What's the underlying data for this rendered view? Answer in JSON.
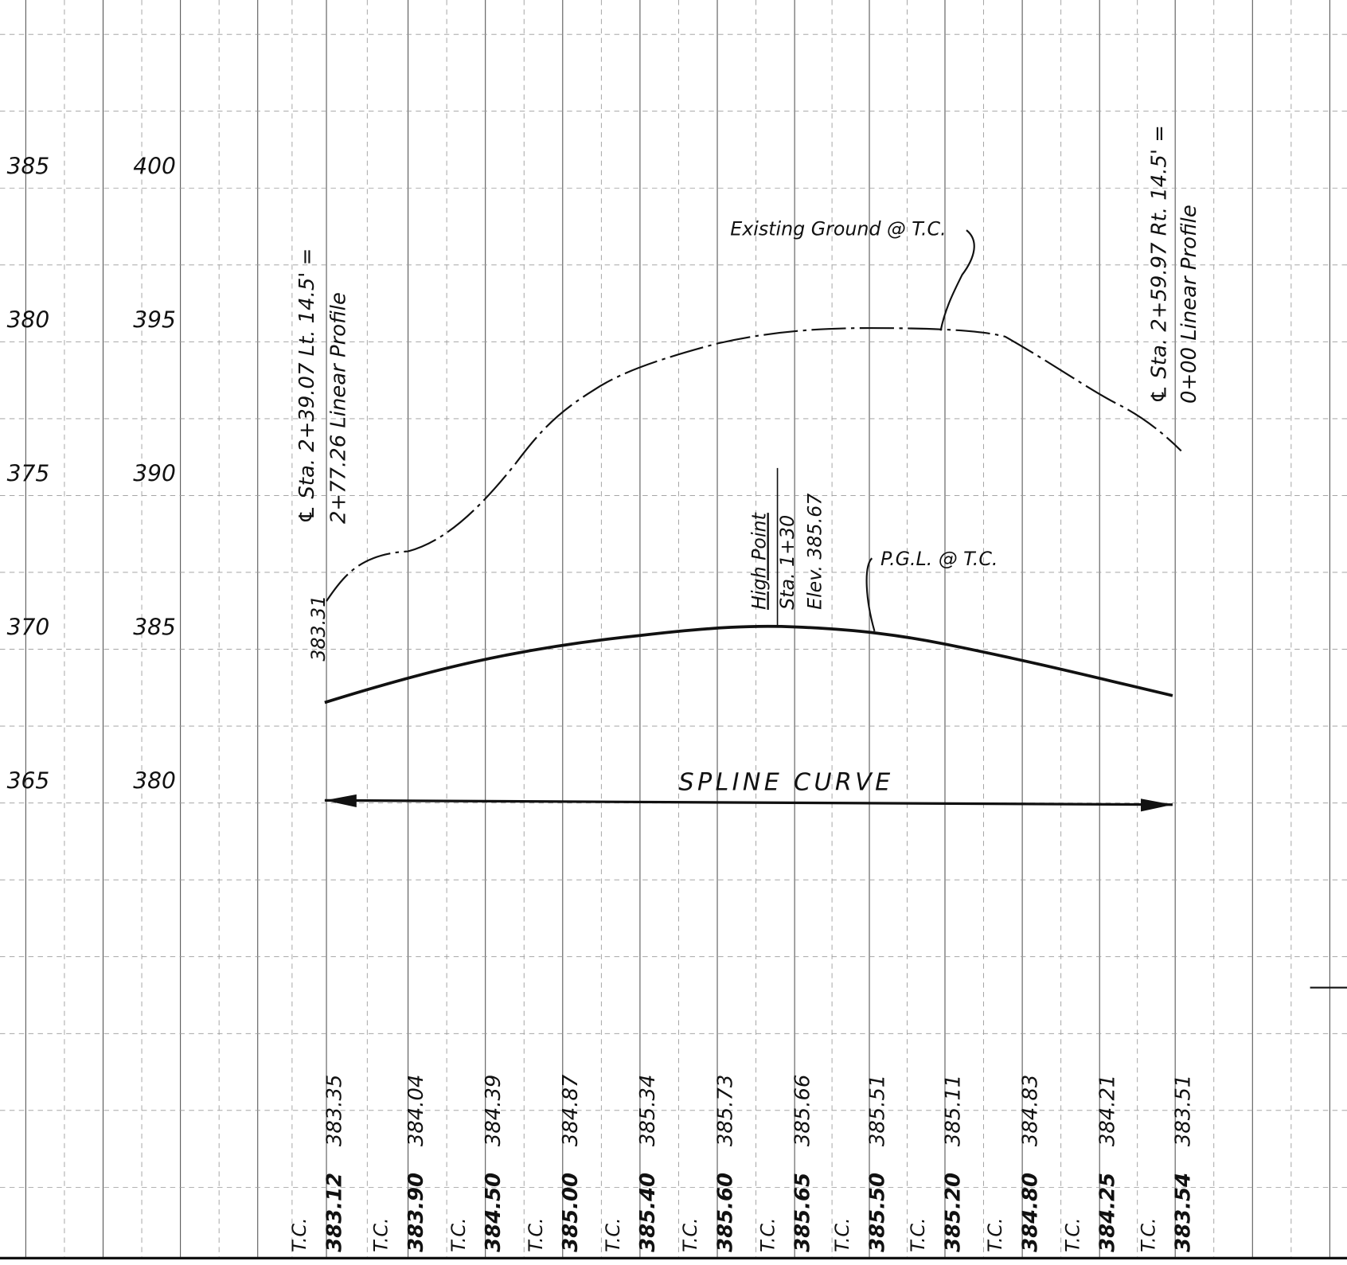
{
  "scale_left": [
    "385",
    "380",
    "375",
    "370",
    "365"
  ],
  "scale_right": [
    "400",
    "395",
    "390",
    "385",
    "380"
  ],
  "begin_note": [
    "℄ Sta. 2+39.07 Lt. 14.5' =",
    "2+77.26 Linear Profile"
  ],
  "end_note": [
    "℄ Sta. 2+59.97 Rt. 14.5' =",
    "0+00 Linear Profile"
  ],
  "start_elevation": "383.31",
  "existing_ground": "Existing Ground @ T.C.",
  "pgl": "P.G.L. @ T.C.",
  "high_point": [
    "High Point",
    "Sta. 1+30",
    "Elev. 385.67"
  ],
  "curve_label": "SPLINE CURVE",
  "columns": [
    {
      "label": "T.C.",
      "proposed": "383.12",
      "existing": "383.35"
    },
    {
      "label": "T.C.",
      "proposed": "383.90",
      "existing": "384.04"
    },
    {
      "label": "T.C.",
      "proposed": "384.50",
      "existing": "384.39"
    },
    {
      "label": "T.C.",
      "proposed": "385.00",
      "existing": "384.87"
    },
    {
      "label": "T.C.",
      "proposed": "385.40",
      "existing": "385.34"
    },
    {
      "label": "T.C.",
      "proposed": "385.60",
      "existing": "385.73"
    },
    {
      "label": "T.C.",
      "proposed": "385.65",
      "existing": "385.66"
    },
    {
      "label": "T.C.",
      "proposed": "385.50",
      "existing": "385.51"
    },
    {
      "label": "T.C.",
      "proposed": "385.20",
      "existing": "385.11"
    },
    {
      "label": "T.C.",
      "proposed": "384.80",
      "existing": "384.83"
    },
    {
      "label": "T.C.",
      "proposed": "384.25",
      "existing": "384.21"
    },
    {
      "label": "T.C.",
      "proposed": "383.54",
      "existing": "383.51"
    }
  ]
}
